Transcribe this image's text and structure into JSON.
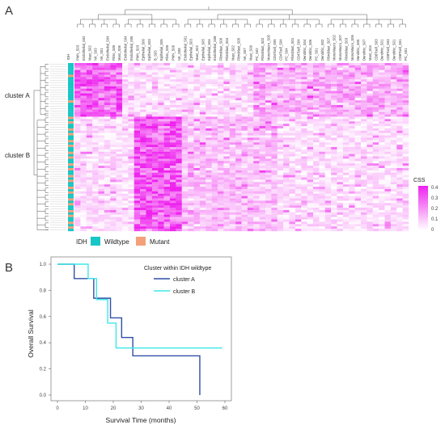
{
  "chart_data": [
    {
      "type": "heatmap",
      "panel_label": "A",
      "column_labels": [
        "PMN_S03",
        "Endothelial_S02",
        "Mast_S02",
        "NK_S03",
        "NK_S01",
        "Endothelial_S04",
        "Fibro_S06",
        "Mast_S06",
        "Endothelial_S04",
        "Endothelial_S06",
        "PMN_S03",
        "Epithelial_S06",
        "Epithelial_S03",
        "B_S03",
        "Epithelial_S05",
        "Fibro_S05",
        "PMN_S06",
        "NK_S08",
        "Endothelial_S01",
        "Epithelial_S03",
        "Mast_S02",
        "Epithelial_S05",
        "Epithelial_S04",
        "Endothelial_S08",
        "Fibroblast_S06",
        "Fibroblast_S04",
        "Mast_S02",
        "Fibroblast_S05",
        "NK_S07",
        "Mast_S09",
        "PC_S02",
        "Fibroblast_S02",
        "MonoMacro_S05",
        "CD4Tcell_S05",
        "CD4Tcell_S04",
        "PC_S04",
        "Fibroblast_S01",
        "CD4Tcell_S04",
        "Dendritic_S04",
        "Dendritic_S06",
        "PC_S01",
        "Dendritic_S02",
        "Fibroblast_S07",
        "MonoMacro_S02",
        "MonoMacro_S07",
        "Fibroblast_S03",
        "MonoMacro_S06",
        "Dendritic_S05",
        "Dendritic_S07",
        "Mast_S04",
        "CD8Tcell_S03",
        "Dendritic_S01",
        "CD8Tcell_S03",
        "Dendritic_S01",
        "CD8Tcell_S01",
        "PC_S01"
      ],
      "row_count": 72,
      "row_clusters": [
        "cluster A",
        "cluster B"
      ],
      "row_annotation_label": "IDH",
      "row_annotation_legend": [
        {
          "label": "Wildtype",
          "color": "#19c6c6"
        },
        {
          "label": "Mutant",
          "color": "#f4a07a"
        }
      ],
      "color_scale": {
        "title": "CSS",
        "min": 0,
        "max": 0.4,
        "ticks": [
          "0.4",
          "0.3",
          "0.2",
          "0.1",
          "0"
        ],
        "low_color": "#ffffff",
        "high_color": "#ee22ee"
      }
    },
    {
      "type": "line",
      "subtype": "kaplan-meier",
      "panel_label": "B",
      "xlabel": "Survival Time (months)",
      "ylabel": "Overall Survival",
      "xlim": [
        0,
        60
      ],
      "ylim": [
        0,
        1
      ],
      "xticks": [
        "0",
        "10",
        "20",
        "30",
        "40",
        "50",
        "60"
      ],
      "yticks": [
        "0.0",
        "0.2",
        "0.4",
        "0.6",
        "0.8",
        "1.0"
      ],
      "legend_title": "Cluster within IDH wildtype",
      "series": [
        {
          "name": "cluster A",
          "color": "#2f4fa8",
          "steps": [
            [
              0,
              1.0
            ],
            [
              6,
              0.89
            ],
            [
              13,
              0.74
            ],
            [
              19,
              0.59
            ],
            [
              23,
              0.44
            ],
            [
              27,
              0.3
            ],
            [
              51,
              0.0
            ]
          ]
        },
        {
          "name": "cluster B",
          "color": "#3ee8e8",
          "steps": [
            [
              0,
              1.0
            ],
            [
              11,
              0.89
            ],
            [
              14,
              0.73
            ],
            [
              18,
              0.55
            ],
            [
              21,
              0.36
            ],
            [
              59,
              0.36
            ]
          ]
        }
      ]
    }
  ]
}
